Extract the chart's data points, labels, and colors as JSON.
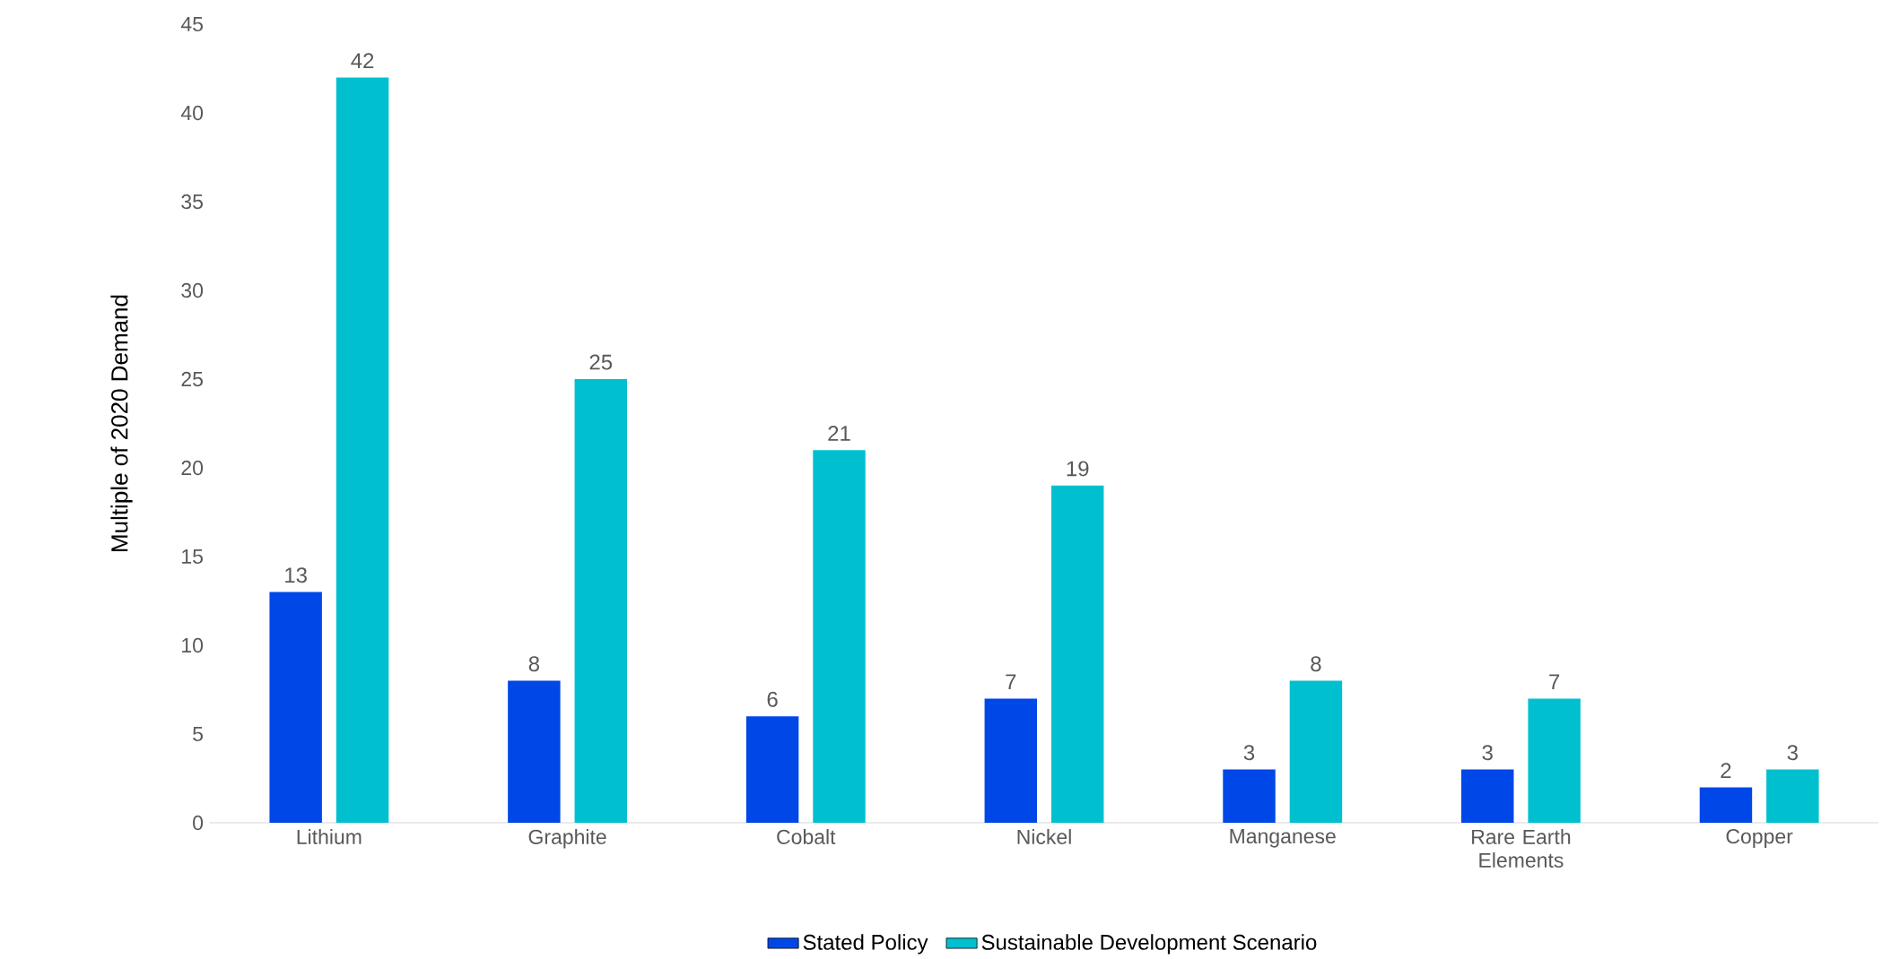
{
  "chart_data": {
    "type": "bar",
    "ylabel": "Multiple of 2020 Demand",
    "categories": [
      "Lithium",
      "Graphite",
      "Cobalt",
      "Nickel",
      "Manganese",
      "Rare Earth Elements",
      "Copper"
    ],
    "series": [
      {
        "name": "Stated Policy",
        "color": "#0047e8",
        "values": [
          13,
          8,
          6,
          7,
          3,
          3,
          2
        ]
      },
      {
        "name": "Sustainable Development Scenario",
        "color": "#00c0d0",
        "values": [
          42,
          25,
          21,
          19,
          8,
          7,
          3
        ]
      }
    ],
    "ylim": [
      0,
      45
    ],
    "yticks": [
      0,
      5,
      10,
      15,
      20,
      25,
      30,
      35,
      40,
      45
    ],
    "data_labels": true,
    "legend": "bottom"
  }
}
